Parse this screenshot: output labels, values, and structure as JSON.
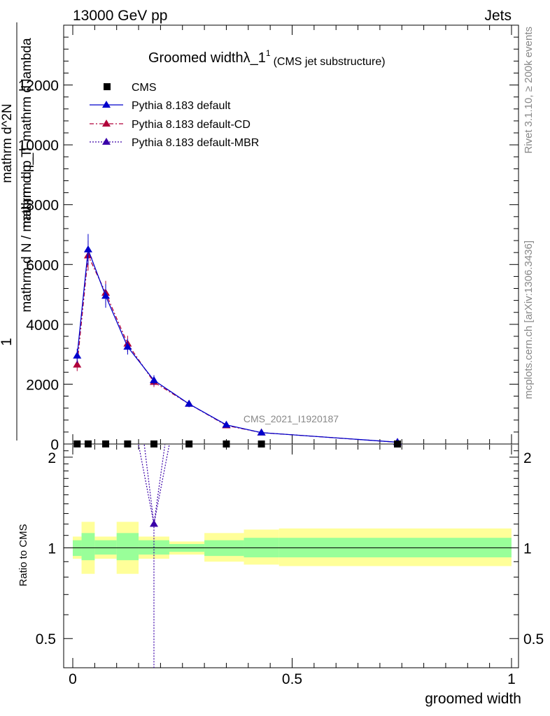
{
  "header": {
    "left": "13000 GeV pp",
    "right": "Jets"
  },
  "side": {
    "rivet": "Rivet 3.1.10, ≥ 200k events",
    "mcplots": "mcplots.cern.ch [arXiv:1306.3436]"
  },
  "chart_data": {
    "type": "line",
    "title_main": "Groomed widthλ_1",
    "title_sup": "1",
    "title_sub": "(CMS jet substructure)",
    "watermark": "CMS_2021_I1920187",
    "ylabel_num": "1",
    "ylabel_line1": "mathrm d N / mathrm d p_T",
    "ylabel_line2": "mathrm d^2 N / mathrm d p_T mathrm d lambda",
    "ylabel_num_full": "mathrm d^2N",
    "ylabel_den_full": "mathrm d p_T mathrm d lambda",
    "xlabel": "groomed width",
    "ratio_ylabel": "Ratio to CMS",
    "xlim": [
      0,
      1
    ],
    "ylim": [
      0,
      14000
    ],
    "ratio_ylim": [
      0.4,
      2.2
    ],
    "x_ticks": [
      "0",
      "0.5",
      "1"
    ],
    "y_ticks": [
      "0",
      "2000",
      "4000",
      "6000",
      "8000",
      "10000",
      "12000"
    ],
    "ratio_ticks": [
      "0.5",
      "1",
      "2"
    ],
    "legend": [
      "CMS",
      "Pythia 8.183 default",
      "Pythia 8.183 default-CD",
      "Pythia 8.183 default-MBR"
    ],
    "x": [
      0.01,
      0.035,
      0.075,
      0.125,
      0.185,
      0.265,
      0.35,
      0.43,
      0.74
    ],
    "bin_edges": [
      0,
      0.02,
      0.05,
      0.1,
      0.15,
      0.22,
      0.3,
      0.39,
      0.47,
      1.0
    ],
    "series": [
      {
        "name": "CMS",
        "color": "#000000",
        "values": [
          2.7,
          2.7,
          2.4,
          1.9,
          1.4,
          0.95,
          0.55,
          0.3,
          0.07
        ]
      },
      {
        "name": "Pythia 8.183 default",
        "color": "#0000cc",
        "values": [
          2950,
          6500,
          4950,
          3250,
          2130,
          1340,
          640,
          380,
          60
        ]
      },
      {
        "name": "Pythia 8.183 default-CD",
        "color": "#b0003a",
        "values": [
          2650,
          6300,
          5050,
          3350,
          2070,
          1340,
          620,
          380,
          60
        ]
      },
      {
        "name": "Pythia 8.183 default-MBR",
        "color": "#3a00a8",
        "values": [
          null,
          null,
          null,
          null,
          1.2,
          null,
          null,
          null,
          null
        ]
      }
    ],
    "ratio_band_inner": [
      [
        0.94,
        1.06
      ],
      [
        0.91,
        1.12
      ],
      [
        0.95,
        1.06
      ],
      [
        0.91,
        1.12
      ],
      [
        0.95,
        1.06
      ],
      [
        0.97,
        1.03
      ],
      [
        0.94,
        1.06
      ],
      [
        0.93,
        1.08
      ],
      [
        0.93,
        1.08
      ]
    ],
    "ratio_band_outer": [
      [
        0.92,
        1.09
      ],
      [
        0.82,
        1.22
      ],
      [
        0.92,
        1.09
      ],
      [
        0.82,
        1.22
      ],
      [
        0.92,
        1.09
      ],
      [
        0.95,
        1.05
      ],
      [
        0.9,
        1.12
      ],
      [
        0.88,
        1.15
      ],
      [
        0.87,
        1.16
      ]
    ]
  }
}
